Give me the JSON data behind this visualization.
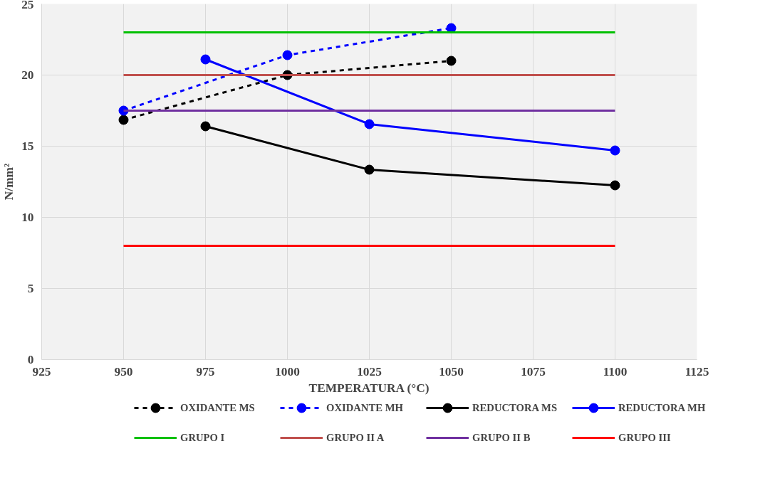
{
  "chart_data": {
    "type": "line",
    "xlabel": "TEMPERATURA (°C)",
    "ylabel": "N/mm²",
    "xlim": [
      925,
      1125
    ],
    "xticks": [
      925,
      950,
      975,
      1000,
      1025,
      1050,
      1075,
      1100,
      1125
    ],
    "ylim": [
      0,
      25
    ],
    "yticks": [
      0,
      5,
      10,
      15,
      20,
      25
    ],
    "grid": true,
    "legend": "bottom",
    "series": [
      {
        "name": "OXIDANTE MS",
        "color": "#000000",
        "line_style": "dashed",
        "marker": "circle",
        "x": [
          950,
          1000,
          1050
        ],
        "values": [
          16.85,
          20.0,
          21.0
        ]
      },
      {
        "name": "OXIDANTE MH",
        "color": "#0000ff",
        "line_style": "dashed",
        "marker": "circle",
        "x": [
          950,
          1000,
          1050
        ],
        "values": [
          17.5,
          21.4,
          23.3
        ]
      },
      {
        "name": "REDUCTORA MS",
        "color": "#000000",
        "line_style": "solid",
        "marker": "circle",
        "x": [
          975,
          1025,
          1100
        ],
        "values": [
          16.4,
          13.35,
          12.25
        ]
      },
      {
        "name": "REDUCTORA MH",
        "color": "#0000ff",
        "line_style": "solid",
        "marker": "circle",
        "x": [
          975,
          1025,
          1100
        ],
        "values": [
          21.1,
          16.55,
          14.7
        ]
      },
      {
        "name": "GRUPO I",
        "color": "#00c000",
        "line_style": "solid",
        "marker": "none",
        "x": [
          950,
          1100
        ],
        "values": [
          23,
          23
        ]
      },
      {
        "name": "GRUPO II A",
        "color": "#c0504d",
        "line_style": "solid",
        "marker": "none",
        "x": [
          950,
          1100
        ],
        "values": [
          20,
          20
        ]
      },
      {
        "name": "GRUPO II B",
        "color": "#7030a0",
        "line_style": "solid",
        "marker": "none",
        "x": [
          950,
          1100
        ],
        "values": [
          17.5,
          17.5
        ]
      },
      {
        "name": "GRUPO III",
        "color": "#ff0000",
        "line_style": "solid",
        "marker": "none",
        "x": [
          950,
          1100
        ],
        "values": [
          8,
          8
        ]
      }
    ]
  }
}
